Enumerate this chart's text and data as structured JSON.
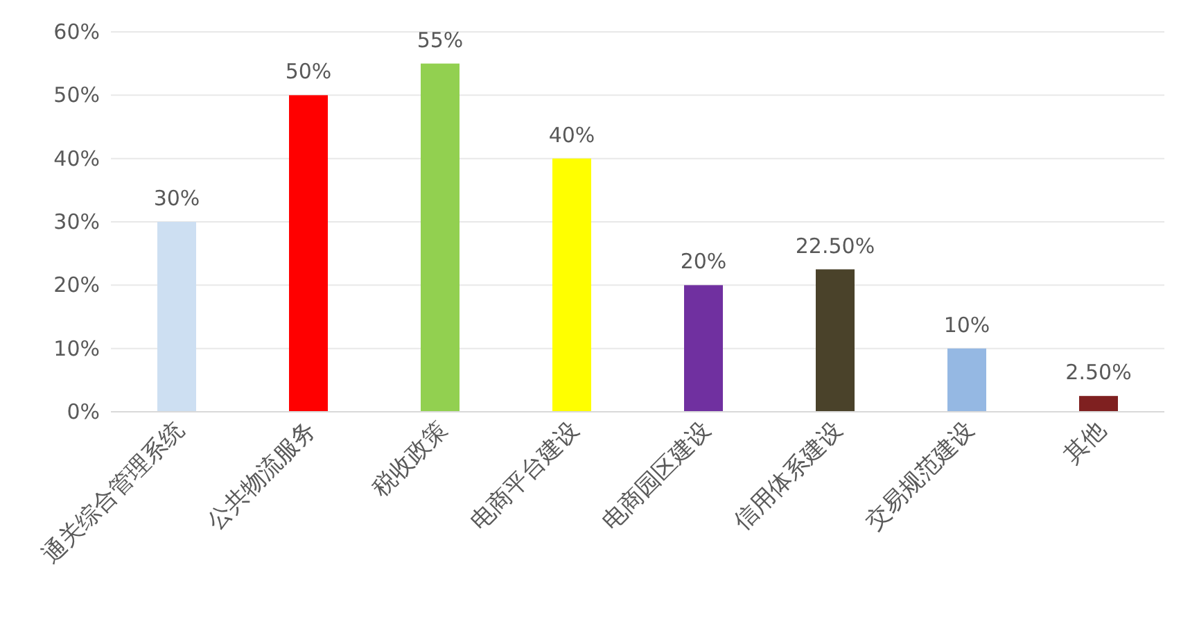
{
  "chart_data": {
    "type": "bar",
    "categories": [
      "通关综合管理系统",
      "公共物流服务",
      "税收政策",
      "电商平台建设",
      "电商园区建设",
      "信用体系建设",
      "交易规范建设",
      "其他"
    ],
    "values": [
      30,
      50,
      55,
      40,
      20,
      22.5,
      10,
      2.5
    ],
    "colors": [
      "#cddff2",
      "#ff0000",
      "#92d050",
      "#ffff00",
      "#7030a0",
      "#4a422a",
      "#95b8e3",
      "#7f2020"
    ],
    "value_labels": [
      "30%",
      "50%",
      "55%",
      "40%",
      "20%",
      "22.50%",
      "10%",
      "2.50%"
    ],
    "ylim": [
      0,
      60
    ],
    "yticks": [
      {
        "value": 0,
        "label": "0%"
      },
      {
        "value": 10,
        "label": "10%"
      },
      {
        "value": 20,
        "label": "20%"
      },
      {
        "value": 30,
        "label": "30%"
      },
      {
        "value": 40,
        "label": "40%"
      },
      {
        "value": 50,
        "label": "50%"
      },
      {
        "value": 60,
        "label": "60%"
      }
    ],
    "grid": "y"
  }
}
